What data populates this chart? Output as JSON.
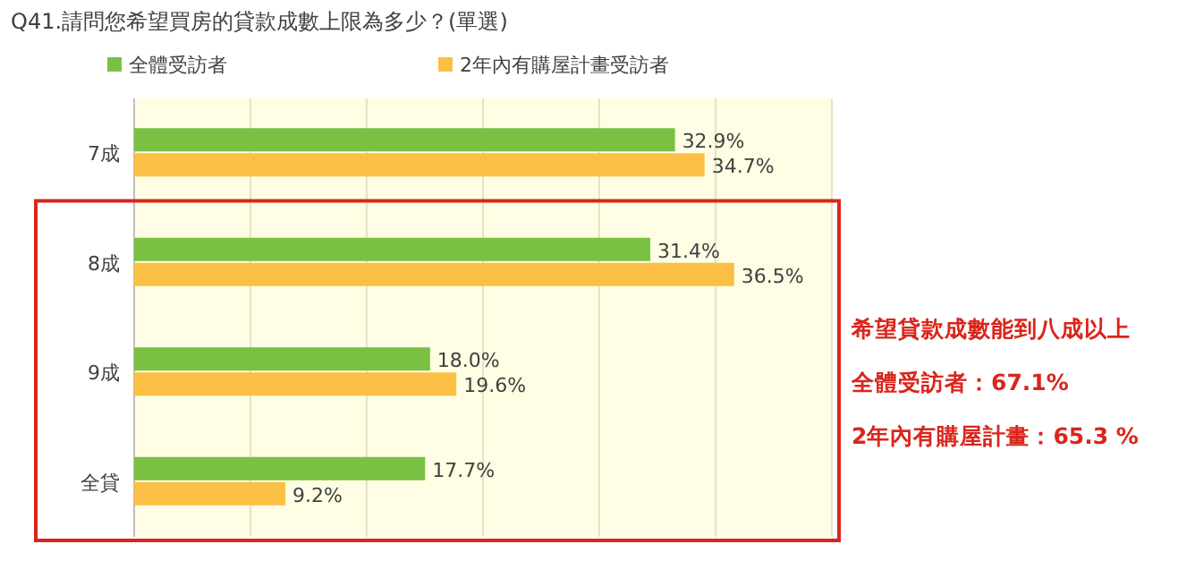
{
  "chart_data": {
    "type": "bar",
    "orientation": "horizontal",
    "title": "Q41.請問您希望買房的貸款成數上限為多少？(單選)",
    "categories": [
      "7成",
      "8成",
      "9成",
      "全貸"
    ],
    "series": [
      {
        "name": "全體受訪者",
        "color": "#7ac143",
        "values": [
          32.9,
          31.4,
          18.0,
          17.7
        ],
        "value_labels": [
          "32.9%",
          "31.4%",
          "18.0%",
          "17.7%"
        ]
      },
      {
        "name": "2年內有購屋計畫受訪者",
        "color": "#fbbf45",
        "values": [
          34.7,
          36.5,
          19.6,
          9.2
        ],
        "value_labels": [
          "34.7%",
          "36.5%",
          "19.6%",
          "9.2%"
        ]
      }
    ],
    "legend": "top left",
    "grid": "x",
    "annotations": [
      "希望貸款成數能到八成以上",
      "全體受訪者：67.1%",
      "2年內有購屋計畫：65.3 %"
    ]
  }
}
